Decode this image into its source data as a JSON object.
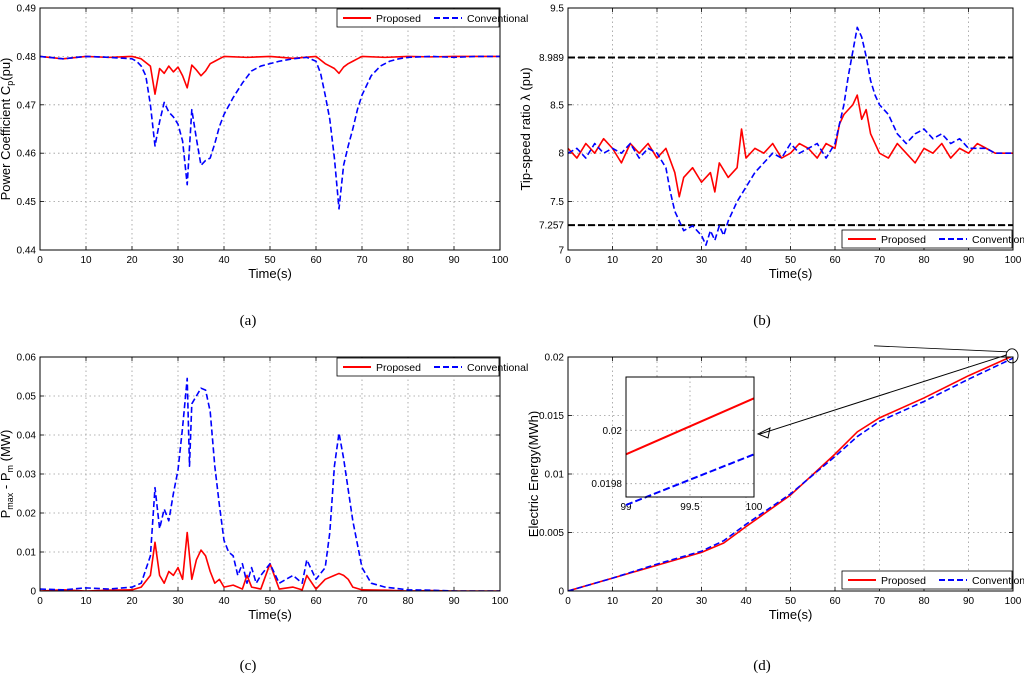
{
  "chart_data": [
    {
      "type": "line",
      "panel_label": "(a)",
      "xlabel": "Time(s)",
      "ylabel": "Power Coefficient C",
      "ylabel_sub": "p",
      "ylabel_suffix": "(pu)",
      "xlim": [
        0,
        100
      ],
      "ylim": [
        0.44,
        0.49
      ],
      "xticks": [
        "0",
        "10",
        "20",
        "30",
        "40",
        "50",
        "60",
        "70",
        "80",
        "90",
        "100"
      ],
      "yticks": [
        "0.44",
        "0.45",
        "0.46",
        "0.47",
        "0.48",
        "0.49"
      ],
      "grid": true,
      "legend_position": "top-right",
      "series": [
        {
          "name": "Proposed",
          "color": "#ff0000",
          "dash": "solid",
          "x": [
            0,
            5,
            10,
            15,
            20,
            22,
            24,
            25,
            26,
            27,
            28,
            29,
            30,
            31,
            32,
            33,
            34,
            35,
            36,
            37,
            38,
            39,
            40,
            45,
            50,
            55,
            60,
            62,
            63,
            64,
            65,
            66,
            67,
            68,
            69,
            70,
            75,
            80,
            85,
            90,
            95,
            100
          ],
          "y": [
            0.48,
            0.4795,
            0.48,
            0.4798,
            0.48,
            0.4795,
            0.478,
            0.4722,
            0.4775,
            0.4765,
            0.478,
            0.4768,
            0.4778,
            0.476,
            0.4735,
            0.4782,
            0.4772,
            0.476,
            0.477,
            0.4785,
            0.479,
            0.4795,
            0.48,
            0.4798,
            0.48,
            0.4796,
            0.48,
            0.4785,
            0.478,
            0.4775,
            0.4765,
            0.4778,
            0.4785,
            0.479,
            0.4795,
            0.48,
            0.4798,
            0.48,
            0.4799,
            0.48,
            0.48,
            0.48
          ]
        },
        {
          "name": "Conventional",
          "color": "#0000ff",
          "dash": "dashed",
          "x": [
            0,
            5,
            10,
            15,
            20,
            21,
            22,
            23,
            24,
            25,
            26,
            27,
            28,
            29,
            30,
            31,
            32,
            33,
            34,
            35,
            36,
            37,
            38,
            39,
            40,
            42,
            44,
            46,
            48,
            50,
            52,
            55,
            58,
            60,
            61,
            62,
            63,
            64,
            65,
            66,
            67,
            68,
            69,
            70,
            72,
            74,
            76,
            78,
            80,
            85,
            90,
            95,
            100
          ],
          "y": [
            0.48,
            0.4795,
            0.48,
            0.4798,
            0.4795,
            0.479,
            0.478,
            0.476,
            0.47,
            0.4615,
            0.4665,
            0.4705,
            0.4685,
            0.4675,
            0.466,
            0.4625,
            0.4535,
            0.469,
            0.463,
            0.4575,
            0.4585,
            0.459,
            0.462,
            0.4655,
            0.468,
            0.4715,
            0.4745,
            0.477,
            0.478,
            0.4785,
            0.479,
            0.4795,
            0.4798,
            0.479,
            0.4765,
            0.472,
            0.467,
            0.459,
            0.4485,
            0.4575,
            0.4615,
            0.465,
            0.469,
            0.472,
            0.476,
            0.478,
            0.479,
            0.4795,
            0.4798,
            0.48,
            0.4798,
            0.48,
            0.48
          ]
        }
      ]
    },
    {
      "type": "line",
      "panel_label": "(b)",
      "xlabel": "Time(s)",
      "ylabel": "Tip-speed ratio λ (pu)",
      "xlim": [
        0,
        100
      ],
      "ylim": [
        7,
        9.5
      ],
      "xticks": [
        "0",
        "10",
        "20",
        "30",
        "40",
        "50",
        "60",
        "70",
        "80",
        "90",
        "100"
      ],
      "yticks": [
        {
          "v": 7,
          "label": "7"
        },
        {
          "v": 7.257,
          "label": "7.257"
        },
        {
          "v": 7.5,
          "label": "7.5"
        },
        {
          "v": 8,
          "label": "8"
        },
        {
          "v": 8.5,
          "label": "8.5"
        },
        {
          "v": 8.989,
          "label": "8.989"
        },
        {
          "v": 9.5,
          "label": "9.5"
        }
      ],
      "reference_lines": [
        7.257,
        8.989
      ],
      "grid": true,
      "legend_position": "bottom-right",
      "series": [
        {
          "name": "Proposed",
          "color": "#ff0000",
          "dash": "solid",
          "x": [
            0,
            2,
            4,
            6,
            8,
            10,
            12,
            14,
            16,
            18,
            20,
            22,
            24,
            25,
            26,
            28,
            30,
            32,
            33,
            34,
            36,
            38,
            39,
            40,
            42,
            44,
            46,
            48,
            50,
            52,
            54,
            56,
            58,
            60,
            61,
            62,
            63,
            64,
            65,
            66,
            67,
            68,
            70,
            72,
            74,
            76,
            78,
            80,
            82,
            84,
            86,
            88,
            90,
            92,
            94,
            96,
            98,
            100
          ],
          "y": [
            8.05,
            7.95,
            8.1,
            8.0,
            8.15,
            8.05,
            7.9,
            8.1,
            8.0,
            8.1,
            7.95,
            8.05,
            7.8,
            7.55,
            7.75,
            7.85,
            7.7,
            7.8,
            7.6,
            7.9,
            7.75,
            7.85,
            8.25,
            7.95,
            8.05,
            8.0,
            8.1,
            7.95,
            8.0,
            8.1,
            8.05,
            7.95,
            8.1,
            8.05,
            8.3,
            8.4,
            8.45,
            8.5,
            8.6,
            8.35,
            8.45,
            8.2,
            8.0,
            7.95,
            8.1,
            8.0,
            7.9,
            8.05,
            8.0,
            8.1,
            7.95,
            8.05,
            8.0,
            8.1,
            8.05,
            8.0,
            8.0,
            8.0
          ]
        },
        {
          "name": "Conventional",
          "color": "#0000ff",
          "dash": "dashed",
          "x": [
            0,
            2,
            4,
            6,
            8,
            10,
            12,
            14,
            16,
            18,
            20,
            22,
            23,
            24,
            25,
            26,
            28,
            30,
            31,
            32,
            33,
            34,
            35,
            36,
            38,
            40,
            42,
            44,
            46,
            48,
            50,
            52,
            54,
            56,
            58,
            60,
            61,
            62,
            63,
            64,
            65,
            66,
            67,
            68,
            69,
            70,
            72,
            74,
            76,
            78,
            80,
            82,
            84,
            86,
            88,
            90,
            92,
            94,
            96,
            98,
            100
          ],
          "y": [
            8.0,
            8.05,
            7.95,
            8.1,
            8.0,
            8.05,
            8.0,
            8.1,
            7.95,
            8.05,
            8.0,
            7.85,
            7.6,
            7.4,
            7.3,
            7.2,
            7.25,
            7.15,
            7.05,
            7.2,
            7.1,
            7.25,
            7.15,
            7.3,
            7.5,
            7.65,
            7.8,
            7.9,
            8.0,
            7.95,
            8.1,
            8.0,
            8.05,
            8.1,
            7.95,
            8.1,
            8.3,
            8.5,
            8.8,
            9.05,
            9.3,
            9.2,
            9.0,
            8.75,
            8.6,
            8.5,
            8.4,
            8.2,
            8.1,
            8.2,
            8.25,
            8.15,
            8.2,
            8.1,
            8.15,
            8.05,
            8.05,
            8.05,
            8.0,
            8.0,
            8.0
          ]
        }
      ]
    },
    {
      "type": "line",
      "panel_label": "(c)",
      "xlabel": "Time(s)",
      "ylabel": "P",
      "ylabel_sub": "max",
      "ylabel_mid": " - P",
      "ylabel_sub2": "m",
      "ylabel_suffix": " (MW)",
      "xlim": [
        0,
        100
      ],
      "ylim": [
        0,
        0.06
      ],
      "xticks": [
        "0",
        "10",
        "20",
        "30",
        "40",
        "50",
        "60",
        "70",
        "80",
        "90",
        "100"
      ],
      "yticks": [
        "0",
        "0.01",
        "0.02",
        "0.03",
        "0.04",
        "0.05",
        "0.06"
      ],
      "grid": true,
      "legend_position": "top-right",
      "series": [
        {
          "name": "Proposed",
          "color": "#ff0000",
          "dash": "solid",
          "x": [
            0,
            5,
            10,
            15,
            20,
            22,
            24,
            25,
            26,
            27,
            28,
            29,
            30,
            31,
            32,
            33,
            34,
            35,
            36,
            37,
            38,
            39,
            40,
            42,
            44,
            45,
            46,
            48,
            50,
            52,
            55,
            57,
            58,
            60,
            62,
            64,
            65,
            66,
            67,
            68,
            70,
            75,
            80,
            85,
            90,
            95,
            100
          ],
          "y": [
            0,
            0.0003,
            0,
            0.0002,
            0.0003,
            0.001,
            0.004,
            0.0125,
            0.004,
            0.002,
            0.005,
            0.004,
            0.006,
            0.003,
            0.015,
            0.003,
            0.008,
            0.0105,
            0.009,
            0.005,
            0.002,
            0.003,
            0.001,
            0.0015,
            0.0005,
            0.004,
            0.001,
            0.0005,
            0.007,
            0.0005,
            0.001,
            0.0003,
            0.004,
            0.0005,
            0.003,
            0.004,
            0.0045,
            0.004,
            0.003,
            0.001,
            0.0003,
            0.0002,
            0,
            0.0001,
            0,
            0,
            0
          ]
        },
        {
          "name": "Conventional",
          "color": "#0000ff",
          "dash": "dashed",
          "x": [
            0,
            5,
            10,
            15,
            20,
            22,
            24,
            25,
            26,
            27,
            28,
            29,
            30,
            31,
            32,
            32.5,
            33,
            34,
            35,
            36,
            37,
            38,
            39,
            40,
            41,
            42,
            43,
            44,
            45,
            46,
            47,
            48,
            50,
            52,
            55,
            57,
            58,
            60,
            62,
            63,
            64,
            65,
            66,
            67,
            68,
            69,
            70,
            72,
            75,
            80,
            85,
            90,
            95,
            100
          ],
          "y": [
            0.0005,
            0.0003,
            0.0008,
            0.0005,
            0.001,
            0.002,
            0.009,
            0.0265,
            0.016,
            0.021,
            0.018,
            0.025,
            0.031,
            0.042,
            0.0545,
            0.032,
            0.048,
            0.05,
            0.052,
            0.0515,
            0.046,
            0.032,
            0.022,
            0.013,
            0.01,
            0.009,
            0.004,
            0.007,
            0.002,
            0.006,
            0.002,
            0.004,
            0.007,
            0.002,
            0.004,
            0.002,
            0.008,
            0.003,
            0.006,
            0.015,
            0.032,
            0.0405,
            0.034,
            0.026,
            0.018,
            0.012,
            0.006,
            0.002,
            0.001,
            0.0003,
            0.0002,
            0,
            0,
            0
          ]
        }
      ]
    },
    {
      "type": "line",
      "panel_label": "(d)",
      "xlabel": "Time(s)",
      "ylabel": "Electric Energy(MWh)",
      "xlim": [
        0,
        100
      ],
      "ylim": [
        0,
        0.02
      ],
      "xticks": [
        "0",
        "10",
        "20",
        "30",
        "40",
        "50",
        "60",
        "70",
        "80",
        "90",
        "100"
      ],
      "yticks": [
        "0",
        "0.005",
        "0.01",
        "0.015",
        "0.02"
      ],
      "grid": true,
      "legend_position": "bottom-right",
      "series": [
        {
          "name": "Proposed",
          "color": "#ff0000",
          "dash": "solid",
          "x": [
            0,
            10,
            20,
            30,
            35,
            40,
            50,
            60,
            65,
            70,
            80,
            90,
            100
          ],
          "y": [
            0,
            0.0011,
            0.0022,
            0.0033,
            0.0041,
            0.0055,
            0.0082,
            0.0117,
            0.0136,
            0.0148,
            0.0165,
            0.0184,
            0.0201
          ]
        },
        {
          "name": "Conventional",
          "color": "#0000ff",
          "dash": "dashed",
          "x": [
            0,
            10,
            20,
            30,
            35,
            40,
            50,
            60,
            65,
            70,
            80,
            90,
            100
          ],
          "y": [
            0,
            0.0011,
            0.0023,
            0.0034,
            0.0043,
            0.0057,
            0.0083,
            0.0115,
            0.0132,
            0.0145,
            0.0162,
            0.0181,
            0.0199
          ]
        }
      ],
      "inset": {
        "xlim": [
          99,
          100
        ],
        "ylim": [
          0.01975,
          0.0202
        ],
        "xticks": [
          {
            "v": 99,
            "label": "99"
          },
          {
            "v": 99.5,
            "label": "99.5"
          },
          {
            "v": 100,
            "label": "100"
          }
        ],
        "yticks": [
          {
            "v": 0.0198,
            "label": "0.0198"
          },
          {
            "v": 0.02,
            "label": "0.02"
          }
        ],
        "series": [
          {
            "name": "Proposed",
            "color": "#ff0000",
            "dash": "solid",
            "x": [
              99,
              100
            ],
            "y": [
              0.01991,
              0.02012
            ]
          },
          {
            "name": "Conventional",
            "color": "#0000ff",
            "dash": "dashed",
            "x": [
              99,
              100
            ],
            "y": [
              0.01972,
              0.01991
            ]
          }
        ]
      }
    }
  ]
}
